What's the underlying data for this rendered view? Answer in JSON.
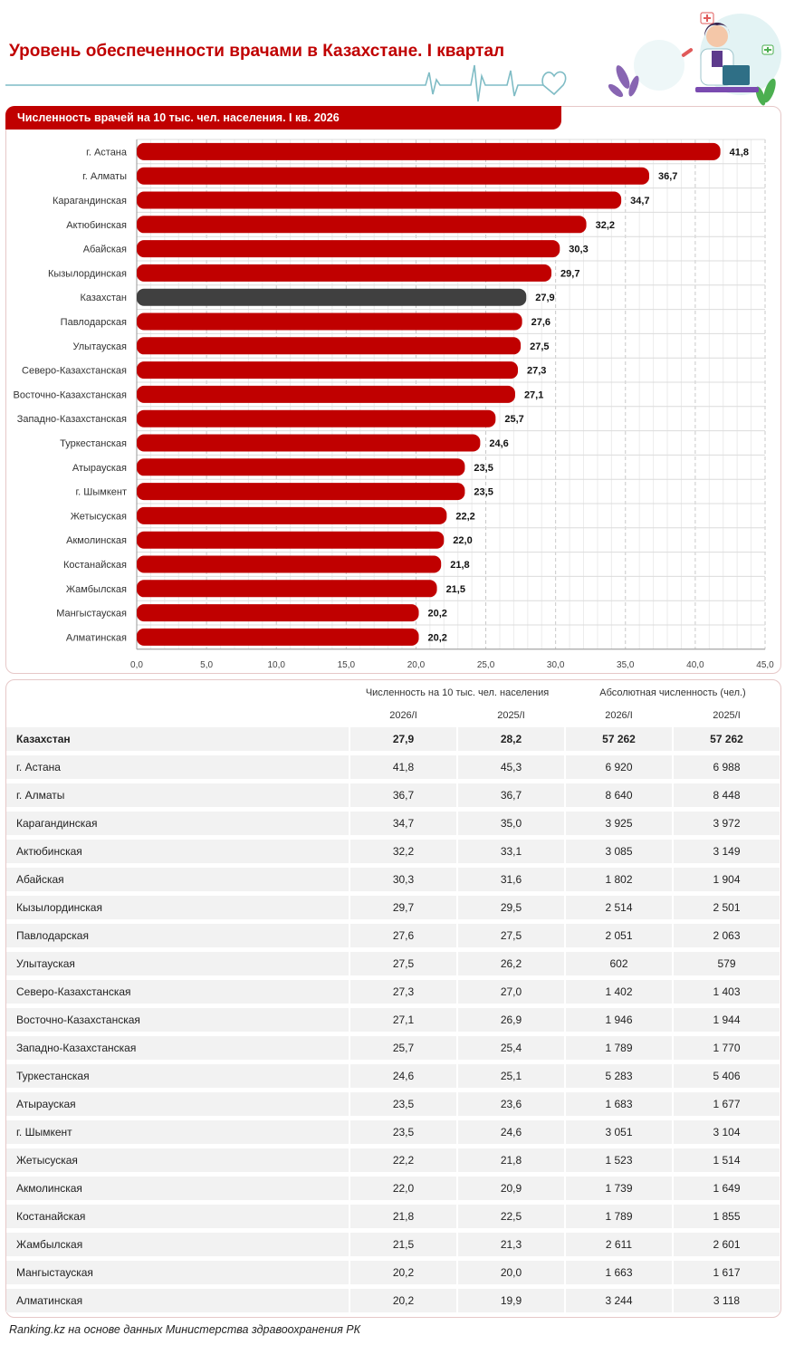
{
  "title": "Уровень обеспеченности врачами в Казахстане. I квартал",
  "colors": {
    "accent": "#c00000",
    "highlight": "#404040",
    "teal": "#7fbcc5"
  },
  "chart_data": {
    "type": "bar",
    "orientation": "horizontal",
    "title": "Численность врачей на 10 тыс. чел. населения. I кв. 2026",
    "categories": [
      "г. Астана",
      "г. Алматы",
      "Карагандинская",
      "Актюбинская",
      "Абайская",
      "Кызылординская",
      "Казахстан",
      "Павлодарская",
      "Улытауская",
      "Северо-Казахстанская",
      "Восточно-Казахстанская",
      "Западно-Казахстанская",
      "Туркестанская",
      "Атырауская",
      "г. Шымкент",
      "Жетысуская",
      "Акмолинская",
      "Костанайская",
      "Жамбылская",
      "Мангыстауская",
      "Алматинская"
    ],
    "values": [
      41.8,
      36.7,
      34.7,
      32.2,
      30.3,
      29.7,
      27.9,
      27.6,
      27.5,
      27.3,
      27.1,
      25.7,
      24.6,
      23.5,
      23.5,
      22.2,
      22.0,
      21.8,
      21.5,
      20.2,
      20.2
    ],
    "value_labels": [
      "41,8",
      "36,7",
      "34,7",
      "32,2",
      "30,3",
      "29,7",
      "27,9",
      "27,6",
      "27,5",
      "27,3",
      "27,1",
      "25,7",
      "24,6",
      "23,5",
      "23,5",
      "22,2",
      "22,0",
      "21,8",
      "21,5",
      "20,2",
      "20,2"
    ],
    "highlight_category": "Казахстан",
    "xlim": [
      0,
      45
    ],
    "xticks": [
      0,
      5,
      10,
      15,
      20,
      25,
      30,
      35,
      40,
      45
    ],
    "xtick_labels": [
      "0,0",
      "5,0",
      "10,0",
      "15,0",
      "20,0",
      "25,0",
      "30,0",
      "35,0",
      "40,0",
      "45,0"
    ],
    "grid": true
  },
  "table": {
    "group_headers": [
      "Численность на 10 тыс. чел. населения",
      "Абсолютная численность (чел.)"
    ],
    "sub_headers": [
      "2026/I",
      "2025/I",
      "2026/I",
      "2025/I"
    ],
    "rows": [
      {
        "name": "Казахстан",
        "v": [
          "27,9",
          "28,2",
          "57 262",
          "57 262"
        ],
        "bold": true
      },
      {
        "name": "г. Астана",
        "v": [
          "41,8",
          "45,3",
          "6 920",
          "6 988"
        ]
      },
      {
        "name": "г. Алматы",
        "v": [
          "36,7",
          "36,7",
          "8 640",
          "8 448"
        ]
      },
      {
        "name": "Карагандинская",
        "v": [
          "34,7",
          "35,0",
          "3 925",
          "3 972"
        ]
      },
      {
        "name": "Актюбинская",
        "v": [
          "32,2",
          "33,1",
          "3 085",
          "3 149"
        ]
      },
      {
        "name": "Абайская",
        "v": [
          "30,3",
          "31,6",
          "1 802",
          "1 904"
        ]
      },
      {
        "name": "Кызылординская",
        "v": [
          "29,7",
          "29,5",
          "2 514",
          "2 501"
        ]
      },
      {
        "name": "Павлодарская",
        "v": [
          "27,6",
          "27,5",
          "2 051",
          "2 063"
        ]
      },
      {
        "name": "Улытауская",
        "v": [
          "27,5",
          "26,2",
          "602",
          "579"
        ]
      },
      {
        "name": "Северо-Казахстанская",
        "v": [
          "27,3",
          "27,0",
          "1 402",
          "1 403"
        ]
      },
      {
        "name": "Восточно-Казахстанская",
        "v": [
          "27,1",
          "26,9",
          "1 946",
          "1 944"
        ]
      },
      {
        "name": "Западно-Казахстанская",
        "v": [
          "25,7",
          "25,4",
          "1 789",
          "1 770"
        ]
      },
      {
        "name": "Туркестанская",
        "v": [
          "24,6",
          "25,1",
          "5 283",
          "5 406"
        ]
      },
      {
        "name": "Атырауская",
        "v": [
          "23,5",
          "23,6",
          "1 683",
          "1 677"
        ]
      },
      {
        "name": "г. Шымкент",
        "v": [
          "23,5",
          "24,6",
          "3 051",
          "3 104"
        ]
      },
      {
        "name": "Жетысуская",
        "v": [
          "22,2",
          "21,8",
          "1 523",
          "1 514"
        ]
      },
      {
        "name": "Акмолинская",
        "v": [
          "22,0",
          "20,9",
          "1 739",
          "1 649"
        ]
      },
      {
        "name": "Костанайская",
        "v": [
          "21,8",
          "22,5",
          "1 789",
          "1 855"
        ]
      },
      {
        "name": "Жамбылская",
        "v": [
          "21,5",
          "21,3",
          "2 611",
          "2 601"
        ]
      },
      {
        "name": "Мангыстауская",
        "v": [
          "20,2",
          "20,0",
          "1 663",
          "1 617"
        ]
      },
      {
        "name": "Алматинская",
        "v": [
          "20,2",
          "19,9",
          "3 244",
          "3 118"
        ]
      }
    ]
  },
  "source": "Ranking.kz на основе данных Министерства здравоохранения РК"
}
